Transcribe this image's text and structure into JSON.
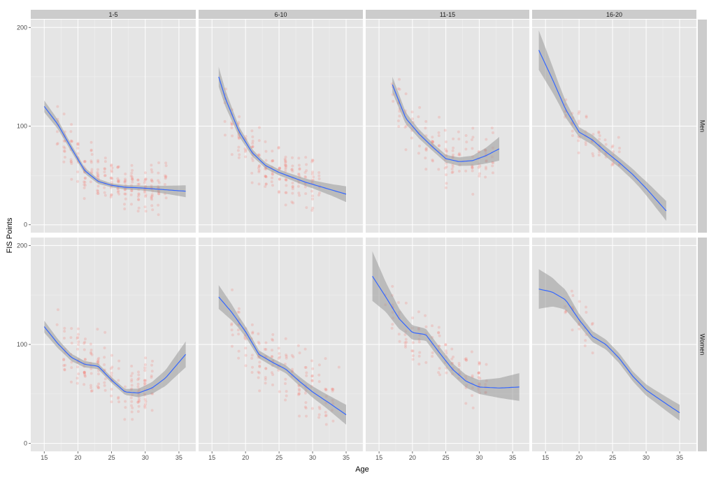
{
  "chart_data": {
    "type": "scatter",
    "title": "",
    "xlabel": "Age",
    "ylabel": "FIS Points",
    "xlim": [
      13,
      37.5
    ],
    "ylim": [
      -8,
      208
    ],
    "x_ticks": [
      15,
      20,
      25,
      30,
      35
    ],
    "y_ticks": [
      0,
      100,
      200
    ],
    "grid": true,
    "legend": "none",
    "columns": [
      "1-5",
      "6-10",
      "11-15",
      "16-20"
    ],
    "rows": [
      "Men",
      "Women"
    ],
    "colors": {
      "panel_bg": "#e5e5e5",
      "strip_bg": "#cccccc",
      "grid": "#ffffff",
      "points": "#f8766d",
      "smooth_line": "#3366ff",
      "ribbon": "#999999"
    },
    "panels": [
      {
        "row": "Men",
        "col": "1-5",
        "point_cloud": {
          "x_range": [
            17,
            33
          ],
          "y_center": 55,
          "y_spread": 38,
          "count": 220
        },
        "smooth": [
          [
            15,
            120
          ],
          [
            17,
            102
          ],
          [
            19,
            78
          ],
          [
            21,
            55
          ],
          [
            23,
            44
          ],
          [
            25,
            40
          ],
          [
            27,
            38
          ],
          [
            29,
            37.5
          ],
          [
            31,
            36.5
          ],
          [
            33,
            35.5
          ],
          [
            36,
            34
          ]
        ],
        "band": [
          [
            15,
            6
          ],
          [
            18,
            4
          ],
          [
            21,
            3
          ],
          [
            25,
            2
          ],
          [
            30,
            2.5
          ],
          [
            33,
            4
          ],
          [
            36,
            6
          ]
        ]
      },
      {
        "row": "Men",
        "col": "6-10",
        "point_cloud": {
          "x_range": [
            17,
            31
          ],
          "y_center": 62,
          "y_spread": 40,
          "count": 170
        },
        "smooth": [
          [
            16,
            150
          ],
          [
            17,
            128
          ],
          [
            19,
            95
          ],
          [
            21,
            73
          ],
          [
            23,
            60
          ],
          [
            25,
            53
          ],
          [
            27,
            48
          ],
          [
            29,
            43
          ],
          [
            31,
            39
          ],
          [
            33,
            35
          ],
          [
            35,
            31
          ]
        ],
        "band": [
          [
            16,
            10
          ],
          [
            19,
            5
          ],
          [
            22,
            3
          ],
          [
            26,
            3
          ],
          [
            30,
            4
          ],
          [
            33,
            6
          ],
          [
            35,
            8
          ]
        ]
      },
      {
        "row": "Men",
        "col": "11-15",
        "point_cloud": {
          "x_range": [
            17,
            32
          ],
          "y_center": 72,
          "y_spread": 42,
          "count": 130
        },
        "smooth": [
          [
            17,
            142
          ],
          [
            19,
            108
          ],
          [
            21,
            92
          ],
          [
            23,
            79
          ],
          [
            25,
            67
          ],
          [
            27,
            64
          ],
          [
            29,
            65
          ],
          [
            31,
            70
          ],
          [
            33,
            77
          ]
        ],
        "band": [
          [
            17,
            8
          ],
          [
            20,
            5
          ],
          [
            23,
            4
          ],
          [
            26,
            4
          ],
          [
            29,
            5
          ],
          [
            31,
            8
          ],
          [
            33,
            12
          ]
        ]
      },
      {
        "row": "Men",
        "col": "16-20",
        "point_cloud": {
          "x_range": [
            18,
            26
          ],
          "y_center": 85,
          "y_spread": 30,
          "count": 60
        },
        "smooth": [
          [
            14,
            177
          ],
          [
            16,
            148
          ],
          [
            18,
            117
          ],
          [
            20,
            94
          ],
          [
            22,
            86
          ],
          [
            24,
            74
          ],
          [
            26,
            63
          ],
          [
            28,
            51
          ],
          [
            30,
            37
          ],
          [
            33,
            14
          ]
        ],
        "band": [
          [
            14,
            20
          ],
          [
            17,
            10
          ],
          [
            20,
            5
          ],
          [
            23,
            5
          ],
          [
            26,
            5
          ],
          [
            29,
            6
          ],
          [
            33,
            10
          ]
        ]
      },
      {
        "row": "Women",
        "col": "1-5",
        "point_cloud": {
          "x_range": [
            17,
            31
          ],
          "y_center": 85,
          "y_spread": 45,
          "count": 170
        },
        "smooth": [
          [
            15,
            118
          ],
          [
            17,
            101
          ],
          [
            19,
            87
          ],
          [
            21,
            80
          ],
          [
            23,
            78
          ],
          [
            25,
            64
          ],
          [
            27,
            52
          ],
          [
            29,
            51
          ],
          [
            31,
            56
          ],
          [
            33,
            66
          ],
          [
            36,
            90
          ]
        ],
        "band": [
          [
            15,
            6
          ],
          [
            18,
            4
          ],
          [
            22,
            3
          ],
          [
            27,
            3
          ],
          [
            30,
            5
          ],
          [
            33,
            8
          ],
          [
            36,
            13
          ]
        ]
      },
      {
        "row": "Women",
        "col": "6-10",
        "point_cloud": {
          "x_range": [
            18,
            34
          ],
          "y_center": 80,
          "y_spread": 45,
          "count": 150
        },
        "smooth": [
          [
            16,
            148
          ],
          [
            18,
            132
          ],
          [
            20,
            113
          ],
          [
            22,
            90
          ],
          [
            24,
            82
          ],
          [
            26,
            75
          ],
          [
            28,
            63
          ],
          [
            30,
            52
          ],
          [
            32,
            43
          ],
          [
            35,
            29
          ]
        ],
        "band": [
          [
            16,
            12
          ],
          [
            19,
            6
          ],
          [
            22,
            4
          ],
          [
            26,
            4
          ],
          [
            29,
            5
          ],
          [
            32,
            7
          ],
          [
            35,
            10
          ]
        ]
      },
      {
        "row": "Women",
        "col": "11-15",
        "point_cloud": {
          "x_range": [
            16,
            31
          ],
          "y_center": 100,
          "y_spread": 45,
          "count": 120
        },
        "smooth": [
          [
            14,
            169
          ],
          [
            16,
            148
          ],
          [
            18,
            126
          ],
          [
            20,
            112
          ],
          [
            22,
            110
          ],
          [
            24,
            92
          ],
          [
            26,
            75
          ],
          [
            28,
            63
          ],
          [
            30,
            57
          ],
          [
            33,
            56
          ],
          [
            36,
            57
          ]
        ],
        "band": [
          [
            14,
            25
          ],
          [
            16,
            15
          ],
          [
            19,
            8
          ],
          [
            22,
            6
          ],
          [
            26,
            6
          ],
          [
            30,
            7
          ],
          [
            33,
            10
          ],
          [
            36,
            14
          ]
        ]
      },
      {
        "row": "Women",
        "col": "16-20",
        "point_cloud": {
          "x_range": [
            18,
            22
          ],
          "y_center": 130,
          "y_spread": 40,
          "count": 25
        },
        "smooth": [
          [
            14,
            156
          ],
          [
            16,
            153
          ],
          [
            18,
            145
          ],
          [
            20,
            125
          ],
          [
            22,
            108
          ],
          [
            24,
            100
          ],
          [
            26,
            86
          ],
          [
            28,
            68
          ],
          [
            30,
            54
          ],
          [
            33,
            40
          ],
          [
            35,
            31
          ]
        ],
        "band": [
          [
            14,
            20
          ],
          [
            17,
            12
          ],
          [
            20,
            6
          ],
          [
            24,
            5
          ],
          [
            28,
            5
          ],
          [
            31,
            6
          ],
          [
            35,
            8
          ]
        ]
      }
    ]
  }
}
